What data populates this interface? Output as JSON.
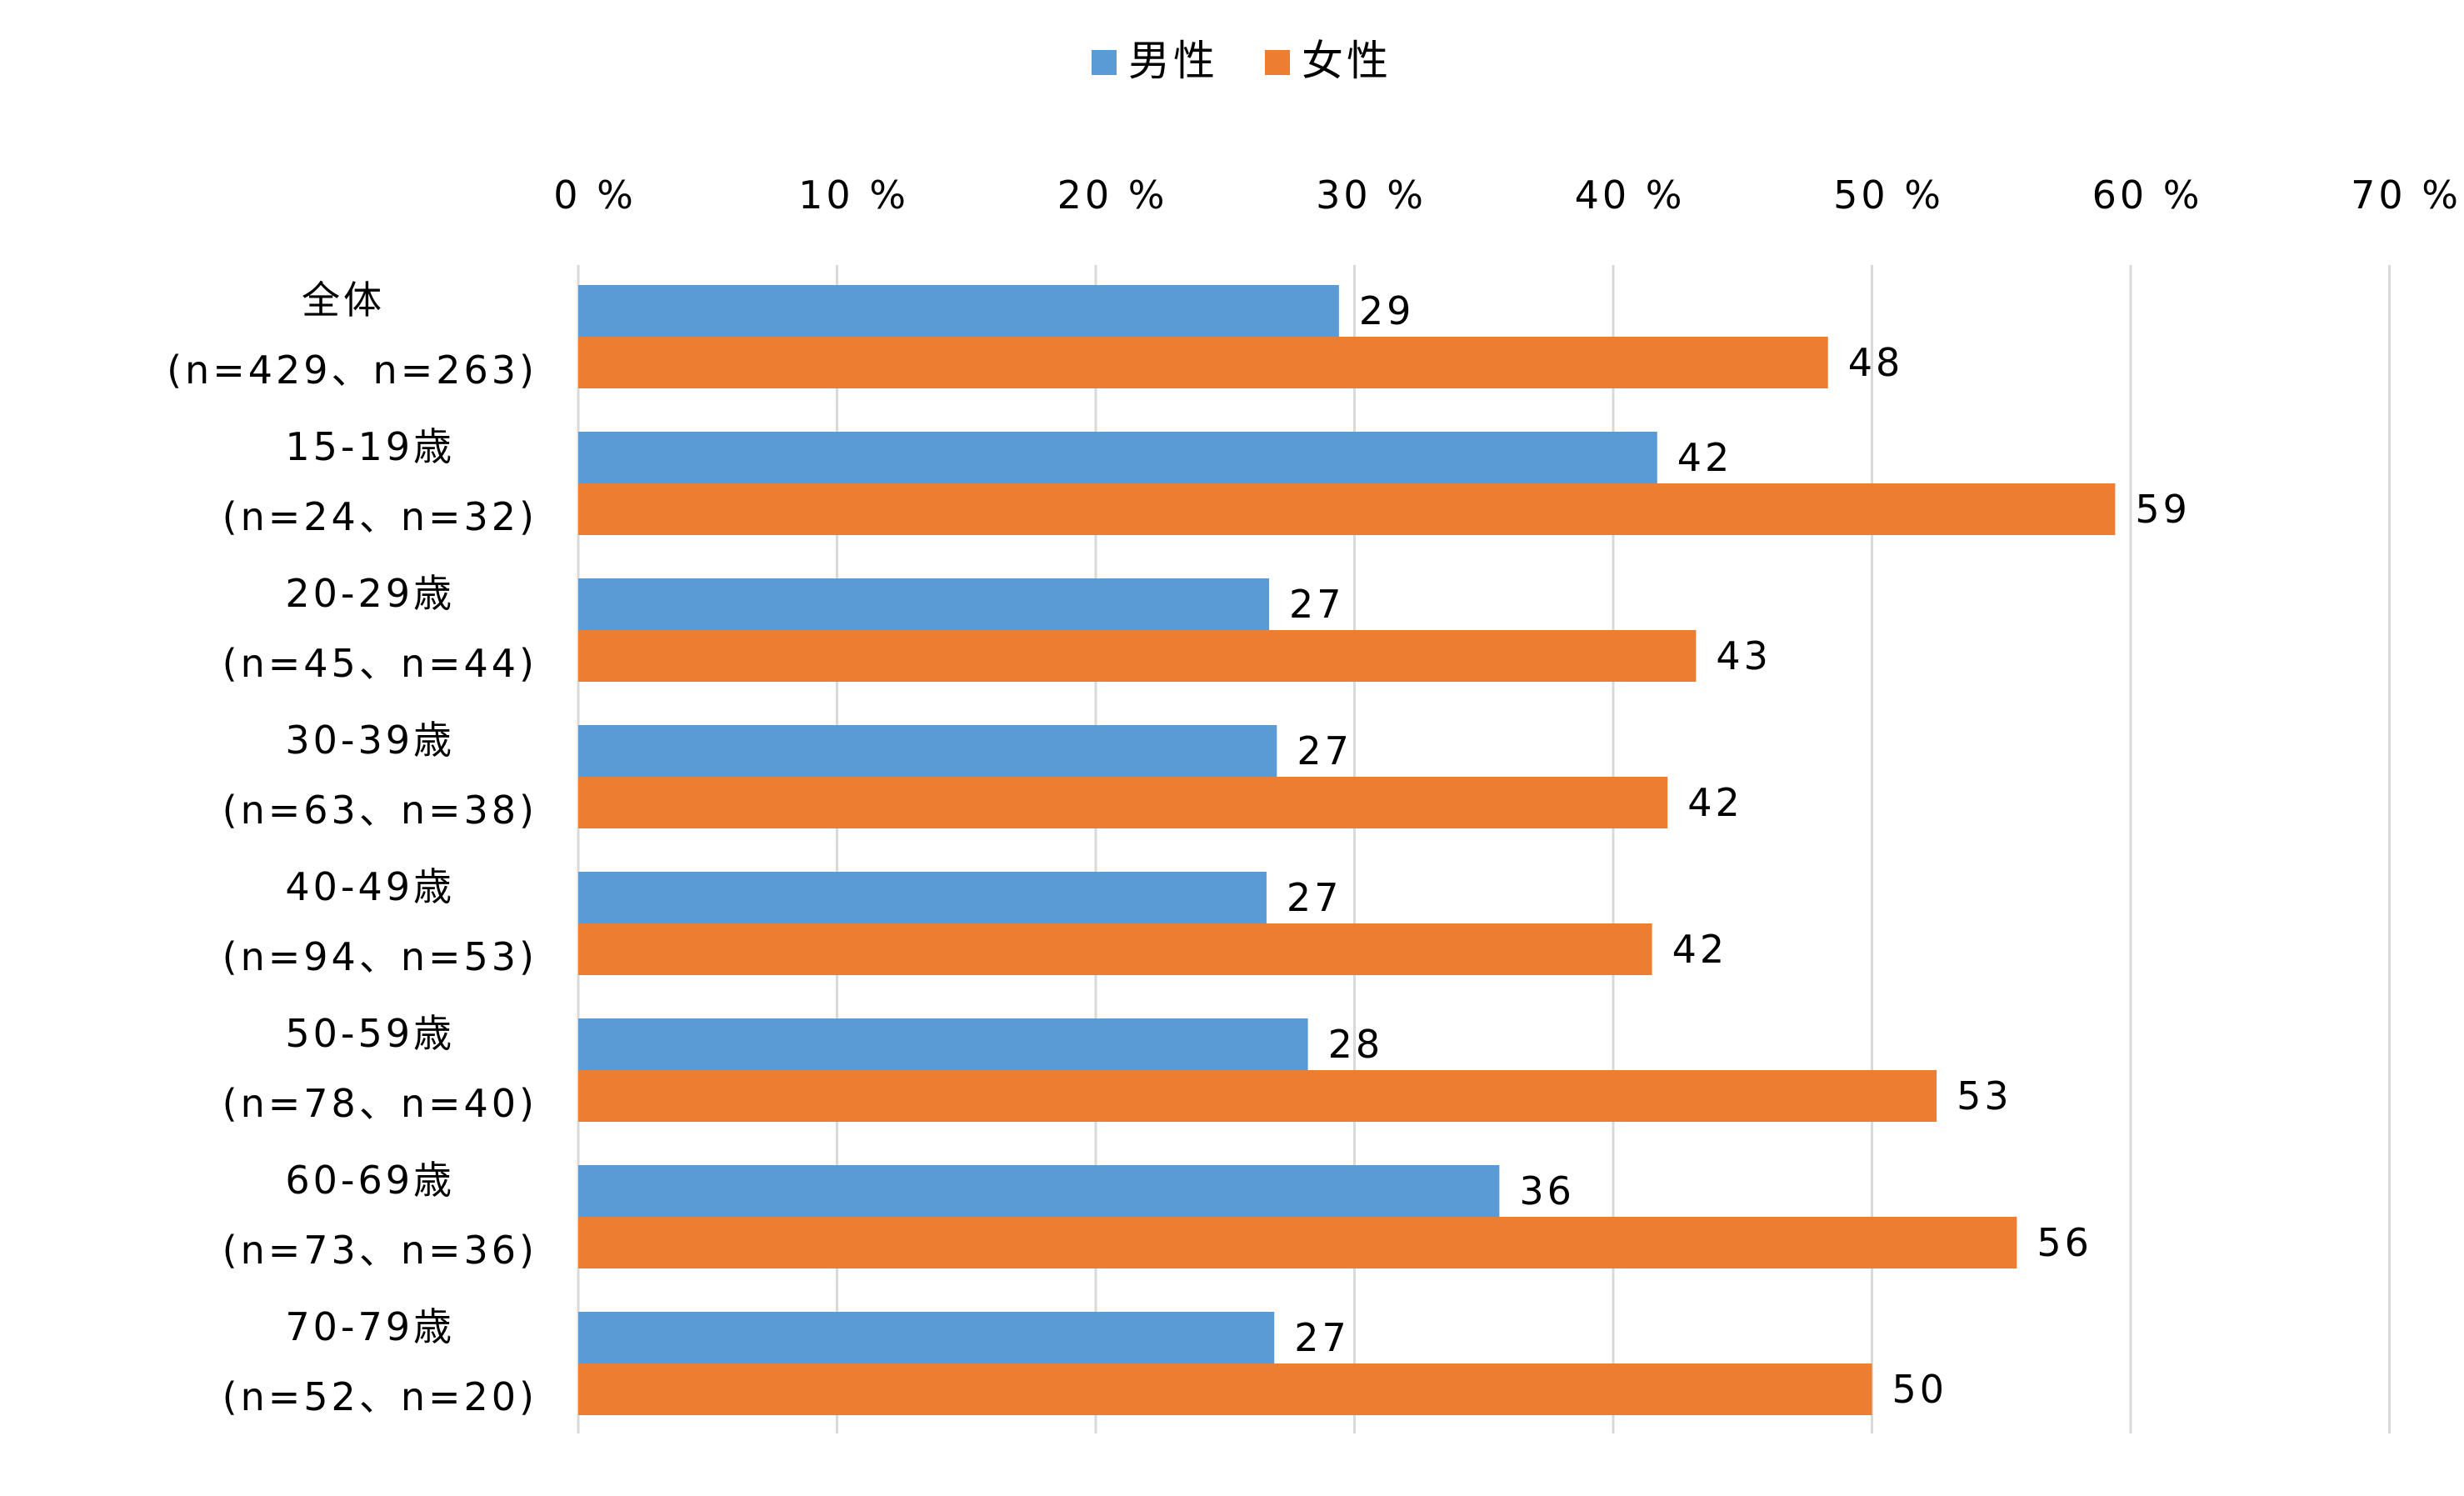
{
  "chart_data": {
    "type": "bar",
    "orientation": "horizontal",
    "categories": [
      {
        "label": "全体",
        "sublabel": "(n=429、n=263)"
      },
      {
        "label": "15-19歳",
        "sublabel": "(n=24、n=32)"
      },
      {
        "label": "20-29歳",
        "sublabel": "(n=45、n=44)"
      },
      {
        "label": "30-39歳",
        "sublabel": "(n=63、n=38)"
      },
      {
        "label": "40-49歳",
        "sublabel": "(n=94、n=53)"
      },
      {
        "label": "50-59歳",
        "sublabel": "(n=78、n=40)"
      },
      {
        "label": "60-69歳",
        "sublabel": "(n=73、n=36)"
      },
      {
        "label": "70-79歳",
        "sublabel": "(n=52、n=20)"
      }
    ],
    "series": [
      {
        "name": "男性",
        "color": "#5b9bd5",
        "values": [
          29.4,
          41.7,
          26.7,
          27.0,
          26.6,
          28.2,
          35.6,
          26.9
        ],
        "labels": [
          "29",
          "42",
          "27",
          "27",
          "27",
          "28",
          "36",
          "27"
        ]
      },
      {
        "name": "女性",
        "color": "#ed7d31",
        "values": [
          48.3,
          59.4,
          43.2,
          42.1,
          41.5,
          52.5,
          55.6,
          50.0
        ],
        "labels": [
          "48",
          "59",
          "43",
          "42",
          "42",
          "53",
          "56",
          "50"
        ]
      }
    ],
    "xlim": [
      0,
      70
    ],
    "xticks": [
      {
        "value": 0,
        "label": "0 %"
      },
      {
        "value": 10,
        "label": "10 %"
      },
      {
        "value": 20,
        "label": "20 %"
      },
      {
        "value": 30,
        "label": "30 %"
      },
      {
        "value": 40,
        "label": "40 %"
      },
      {
        "value": 50,
        "label": "50 %"
      },
      {
        "value": 60,
        "label": "60 %"
      },
      {
        "value": 70,
        "label": "70 %"
      }
    ],
    "legend_position": "top",
    "grid": true
  }
}
